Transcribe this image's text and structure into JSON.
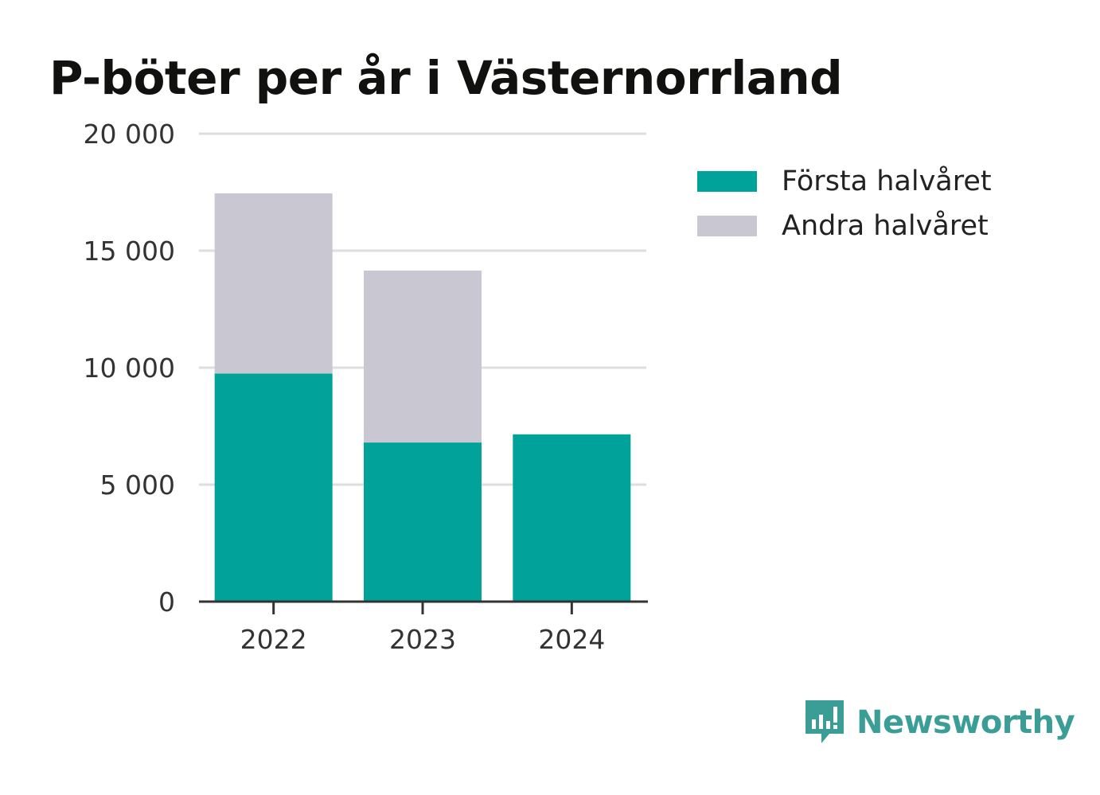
{
  "title": "P-böter per år i Västernorrland",
  "colors": {
    "first": "#00a29a",
    "second": "#c8c7d2",
    "grid": "#dedede",
    "axis": "#333333",
    "brand": "#3a9e97"
  },
  "legend": [
    {
      "label": "Första halvåret",
      "color": "#00a29a"
    },
    {
      "label": "Andra halvåret",
      "color": "#c8c7d2"
    }
  ],
  "chart_data": {
    "type": "bar",
    "stacked": true,
    "categories": [
      "2022",
      "2023",
      "2024"
    ],
    "series": [
      {
        "name": "Första halvåret",
        "values": [
          9750,
          6800,
          7150
        ]
      },
      {
        "name": "Andra halvåret",
        "values": [
          7700,
          7350,
          0
        ]
      }
    ],
    "ylim": [
      0,
      20000
    ],
    "yticks": [
      0,
      5000,
      10000,
      15000,
      20000
    ],
    "ytick_labels": [
      "0",
      "5 000",
      "10 000",
      "15 000",
      "20 000"
    ],
    "grid": true,
    "legend_position": "top-right"
  },
  "brand": {
    "name": "Newsworthy",
    "icon": "newsworthy-logo-icon"
  }
}
